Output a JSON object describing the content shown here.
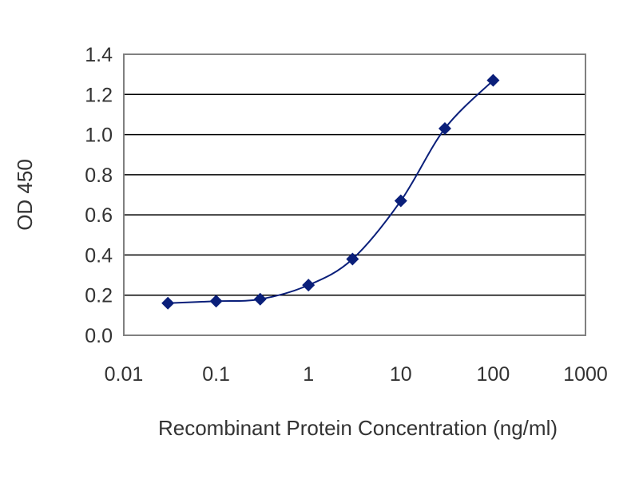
{
  "chart_data": {
    "type": "scatter",
    "title": "",
    "xlabel": "Recombinant Protein Concentration (ng/ml)",
    "ylabel": "OD 450",
    "x_scale": "log",
    "xlim": [
      0.01,
      1000
    ],
    "ylim": [
      0,
      1.4
    ],
    "x_ticks": [
      "0.01",
      "0.1",
      "1",
      "10",
      "100",
      "1000"
    ],
    "y_ticks": [
      "0.0",
      "0.2",
      "0.4",
      "0.6",
      "0.8",
      "1.0",
      "1.2",
      "1.4"
    ],
    "grid": "horizontal",
    "colors": {
      "series": "#0a1f7a",
      "grid": "#000000",
      "frame": "#808080"
    },
    "series": [
      {
        "x": [
          0.03,
          0.1,
          0.3,
          1,
          3,
          10,
          30,
          100
        ],
        "y": [
          0.16,
          0.17,
          0.18,
          0.25,
          0.38,
          0.67,
          1.03,
          1.27
        ]
      }
    ]
  }
}
